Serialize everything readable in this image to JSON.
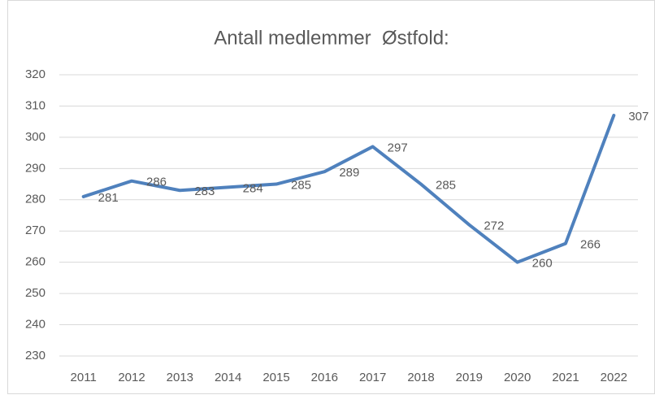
{
  "chart_data": {
    "type": "line",
    "title": "Antall medlemmer  Østfold:",
    "categories": [
      "2011",
      "2012",
      "2013",
      "2014",
      "2015",
      "2016",
      "2017",
      "2018",
      "2019",
      "2020",
      "2021",
      "2022"
    ],
    "values": [
      281,
      286,
      283,
      284,
      285,
      289,
      297,
      285,
      272,
      260,
      266,
      307
    ],
    "color": "#4f81bd",
    "ylim": [
      230,
      320
    ],
    "yticks": [
      230,
      240,
      250,
      260,
      270,
      280,
      290,
      300,
      310,
      320
    ],
    "grid": true
  }
}
